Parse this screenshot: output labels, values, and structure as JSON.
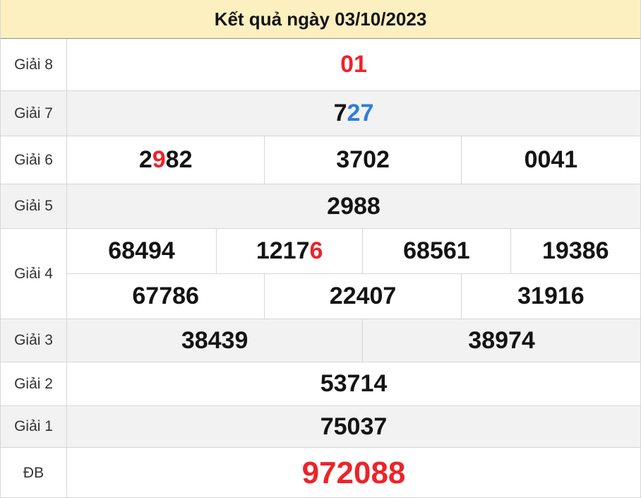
{
  "header": {
    "title": "Kết quả ngày 03/10/2023"
  },
  "colors": {
    "header_bg": "#fcf0c0",
    "stripe_bg": "#f2f2f2",
    "border": "#d6d6d6",
    "label_text": "#333333",
    "black": "#141414",
    "red": "#ed232a",
    "blue": "#2d7ddc"
  },
  "rows": [
    {
      "label": "Giải 8",
      "subrows": [
        {
          "cells": [
            {
              "parts": [
                {
                  "text": "01",
                  "color": "red"
                }
              ]
            }
          ]
        }
      ]
    },
    {
      "label": "Giải 7",
      "subrows": [
        {
          "cells": [
            {
              "parts": [
                {
                  "text": "7",
                  "color": "black"
                },
                {
                  "text": "27",
                  "color": "blue"
                }
              ]
            }
          ]
        }
      ]
    },
    {
      "label": "Giải 6",
      "subrows": [
        {
          "cells": [
            {
              "parts": [
                {
                  "text": "2",
                  "color": "black"
                },
                {
                  "text": "9",
                  "color": "red"
                },
                {
                  "text": "82",
                  "color": "black"
                }
              ]
            },
            {
              "parts": [
                {
                  "text": "3702",
                  "color": "black"
                }
              ]
            },
            {
              "parts": [
                {
                  "text": "0041",
                  "color": "black"
                }
              ]
            }
          ]
        }
      ]
    },
    {
      "label": "Giải 5",
      "subrows": [
        {
          "cells": [
            {
              "parts": [
                {
                  "text": "2988",
                  "color": "black"
                }
              ]
            }
          ]
        }
      ]
    },
    {
      "label": "Giải 4",
      "subrows": [
        {
          "cells": [
            {
              "parts": [
                {
                  "text": "68494",
                  "color": "black"
                }
              ]
            },
            {
              "parts": [
                {
                  "text": "1217",
                  "color": "black"
                },
                {
                  "text": "6",
                  "color": "red"
                }
              ]
            },
            {
              "parts": [
                {
                  "text": "68561",
                  "color": "black"
                }
              ]
            },
            {
              "parts": [
                {
                  "text": "19386",
                  "color": "black"
                }
              ]
            }
          ]
        },
        {
          "cells": [
            {
              "parts": [
                {
                  "text": "67786",
                  "color": "black"
                }
              ]
            },
            {
              "parts": [
                {
                  "text": "22407",
                  "color": "black"
                }
              ]
            },
            {
              "parts": [
                {
                  "text": "31916",
                  "color": "black"
                }
              ]
            }
          ]
        }
      ]
    },
    {
      "label": "Giải 3",
      "subrows": [
        {
          "cells": [
            {
              "parts": [
                {
                  "text": "38439",
                  "color": "black"
                }
              ]
            },
            {
              "parts": [
                {
                  "text": "38974",
                  "color": "black"
                }
              ]
            }
          ]
        }
      ]
    },
    {
      "label": "Giải 2",
      "subrows": [
        {
          "cells": [
            {
              "parts": [
                {
                  "text": "53714",
                  "color": "black"
                }
              ]
            }
          ]
        }
      ]
    },
    {
      "label": "Giải 1",
      "subrows": [
        {
          "cells": [
            {
              "parts": [
                {
                  "text": "75037",
                  "color": "black"
                }
              ]
            }
          ]
        }
      ]
    },
    {
      "label": "ĐB",
      "subrows": [
        {
          "cells": [
            {
              "parts": [
                {
                  "text": "972088",
                  "color": "red"
                }
              ]
            }
          ]
        }
      ]
    }
  ]
}
